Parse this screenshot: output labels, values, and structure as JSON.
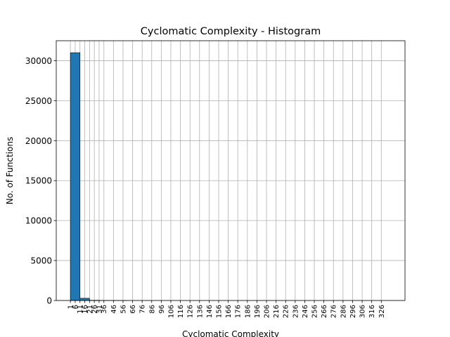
{
  "chart_data": {
    "type": "bar",
    "title": "Cyclomatic Complexity - Histogram",
    "xlabel": "Cyclomatic Complexity",
    "ylabel": "No. of Functions",
    "xlim": [
      -13.8,
      350.8
    ],
    "ylim": [
      0,
      32500
    ],
    "yticks": [
      0,
      5000,
      10000,
      15000,
      20000,
      25000,
      30000
    ],
    "xticks": [
      1,
      6,
      11,
      16,
      21,
      26,
      31,
      36,
      46,
      56,
      66,
      76,
      86,
      96,
      106,
      116,
      126,
      136,
      146,
      156,
      166,
      176,
      186,
      196,
      206,
      216,
      226,
      236,
      246,
      256,
      266,
      276,
      286,
      296,
      306,
      316,
      326
    ],
    "bar_color": "#1f77b4",
    "grid": true,
    "bars": [
      {
        "x0": 1,
        "x1": 11,
        "value": 31000
      },
      {
        "x0": 11,
        "x1": 21,
        "value": 280
      },
      {
        "x0": 21,
        "x1": 31,
        "value": 30
      },
      {
        "x0": 31,
        "x1": 41,
        "value": 8
      },
      {
        "x0": 41,
        "x1": 51,
        "value": 3
      },
      {
        "x0": 51,
        "x1": 61,
        "value": 2
      }
    ]
  }
}
